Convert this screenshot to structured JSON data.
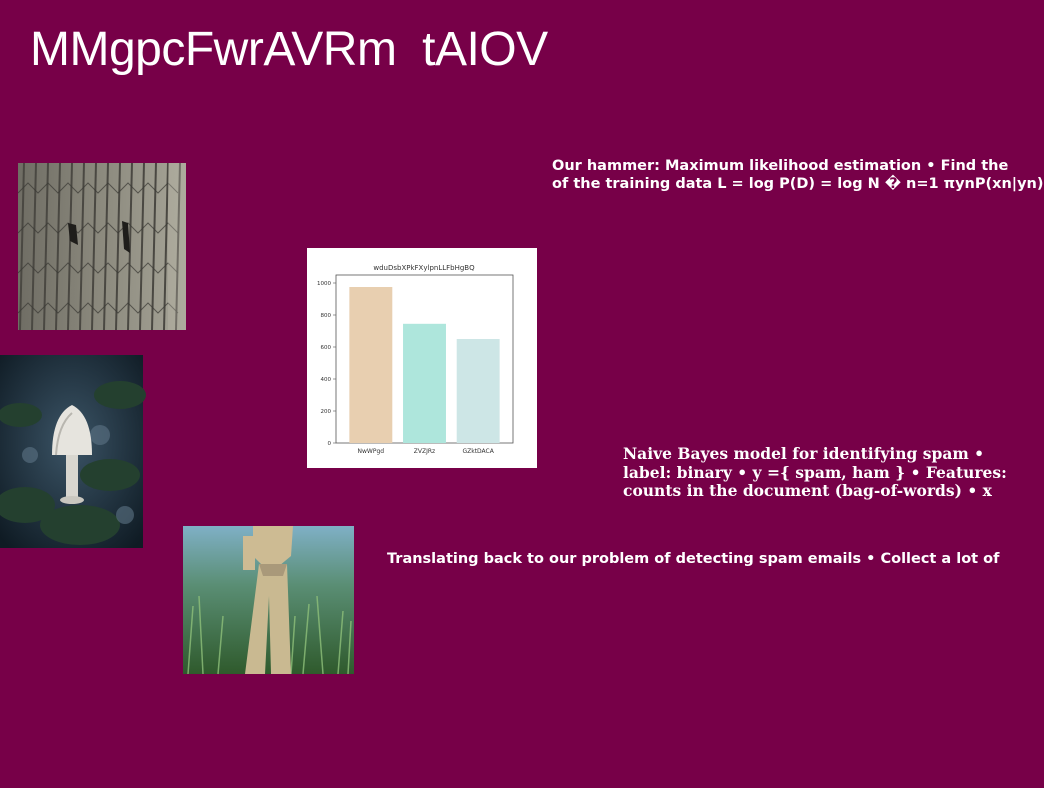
{
  "title": "MMgpcFwrAVRm  tAIOV",
  "texts": {
    "t1": "Our hammer: Maximum likelihood estimation • Find the\nof the training data L = log P(D) = log N � n=1 πynP(xn|yn)",
    "t2": "Naive Bayes model for identifying spam •\nlabel: binary • y ={ spam, ham } • Features:\ncounts in the document (bag-of-words) • x",
    "t3": "Translating back to our problem of detecting spam emails • Collect a lot of"
  },
  "chart_data": {
    "type": "bar",
    "title": "wduDsbXPkFXylpnLLFbHgBQ",
    "categories": [
      "NwWPgd",
      "ZVZJRz",
      "GZktDACA"
    ],
    "values": [
      975,
      745,
      650
    ],
    "colors": [
      "#e8cfb0",
      "#aee6dc",
      "#cde6e6"
    ],
    "ylim": [
      0,
      1050
    ],
    "yticks": [
      0,
      200,
      400,
      600,
      800,
      1000
    ],
    "xlabel": "",
    "ylabel": "",
    "grid": false
  }
}
